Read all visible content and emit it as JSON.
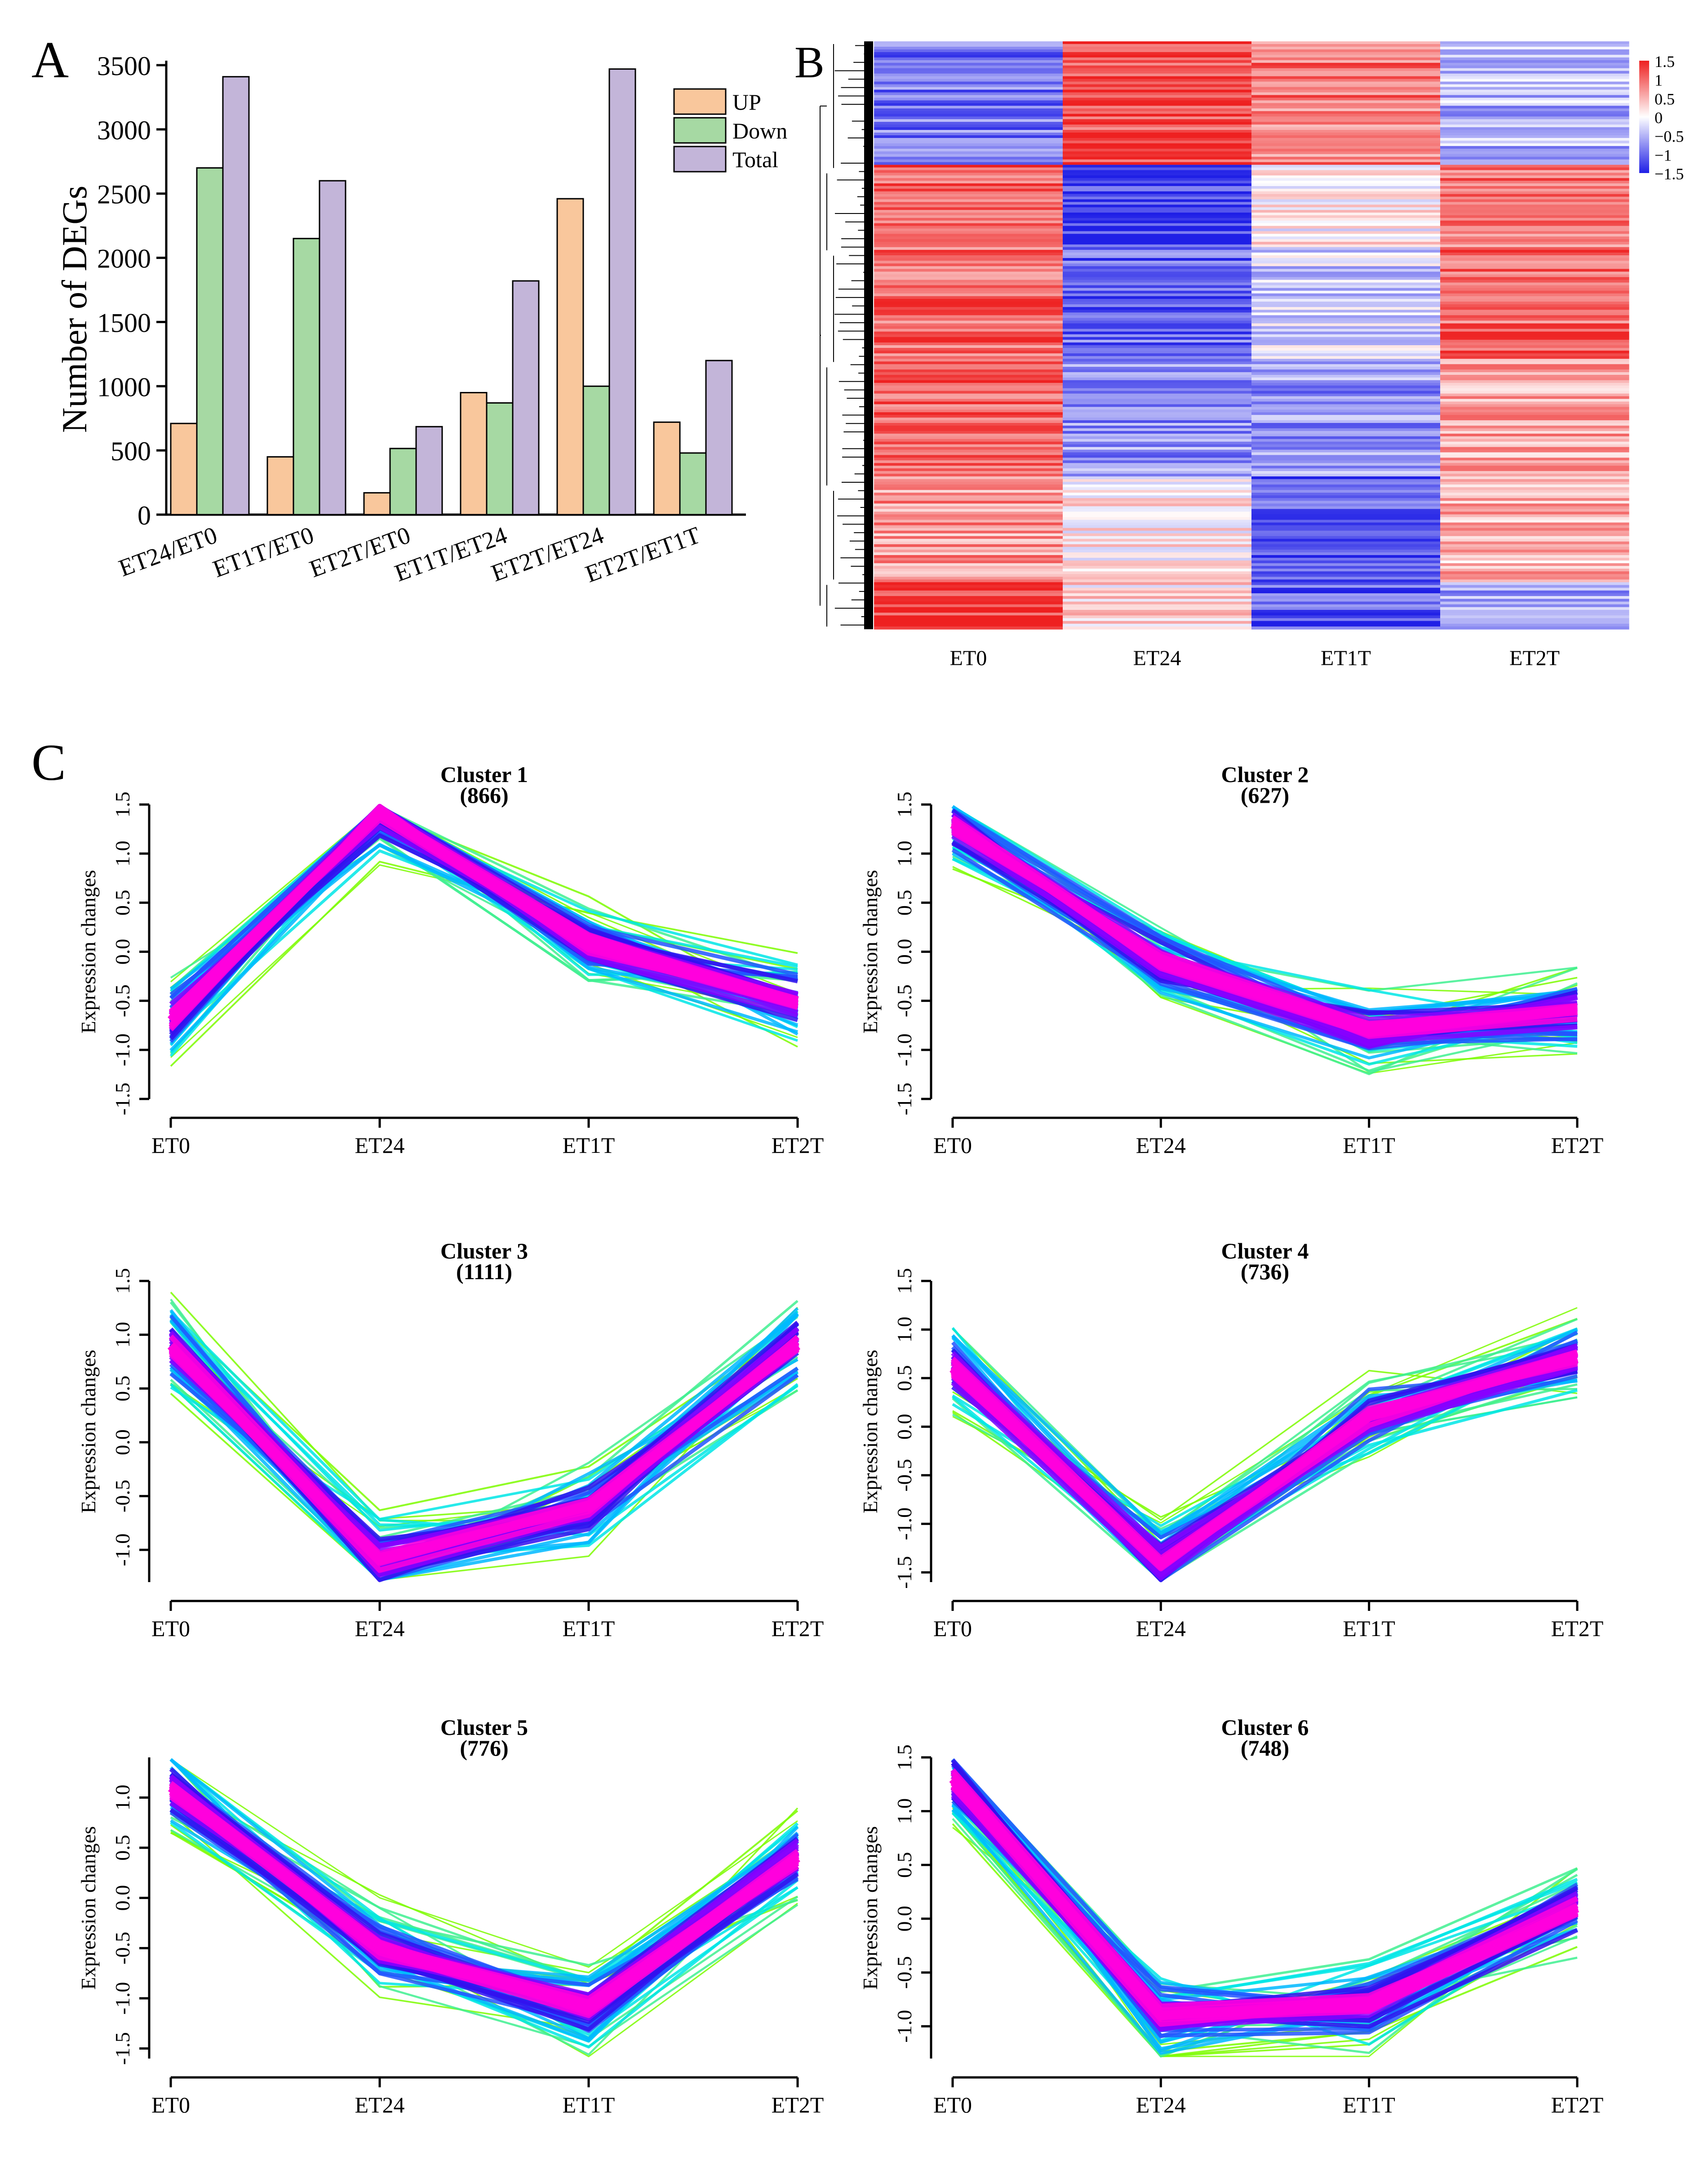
{
  "panels": {
    "a_letter": "A",
    "b_letter": "B",
    "c_letter": "C"
  },
  "chart_data": [
    {
      "id": "A",
      "type": "bar",
      "title": "",
      "ylabel": "Number of DEGs",
      "xlabel": "",
      "ylim": [
        0,
        3500
      ],
      "yticks": [
        0,
        500,
        1000,
        1500,
        2000,
        2500,
        3000,
        3500
      ],
      "categories": [
        "ET24/ET0",
        "ET1T/ET0",
        "ET2T/ET0",
        "ET1T/ET24",
        "ET2T/ET24",
        "ET2T/ET1T"
      ],
      "series": [
        {
          "name": "UP",
          "color": "#f9c79c",
          "values": [
            710,
            450,
            170,
            950,
            2460,
            720
          ]
        },
        {
          "name": "Down",
          "color": "#a6d9a3",
          "values": [
            2700,
            2150,
            515,
            870,
            1000,
            480
          ]
        },
        {
          "name": "Total",
          "color": "#c3b5d9",
          "values": [
            3410,
            2600,
            685,
            1820,
            3470,
            1200
          ]
        }
      ],
      "legend": "top-right"
    },
    {
      "id": "B",
      "type": "heatmap",
      "columns": [
        "ET0",
        "ET24",
        "ET1T",
        "ET2T"
      ],
      "color_scale": {
        "ticks": [
          "1.5",
          "1",
          "0.5",
          "0",
          "−0.5",
          "−1",
          "−1.5"
        ],
        "low": "#1f1fe6",
        "mid": "#ffffff",
        "high": "#ee2020"
      },
      "row_blocks": [
        {
          "frac": 0.21,
          "values": [
            -0.9,
            1.2,
            0.9,
            -0.5
          ]
        },
        {
          "frac": 0.14,
          "values": [
            1.1,
            -1.3,
            0.1,
            0.9
          ]
        },
        {
          "frac": 0.19,
          "values": [
            1.0,
            -1.0,
            -0.3,
            1.0
          ]
        },
        {
          "frac": 0.2,
          "values": [
            1.1,
            -0.7,
            -0.7,
            0.6
          ]
        },
        {
          "frac": 0.18,
          "values": [
            0.7,
            0.1,
            -1.1,
            0.5
          ]
        },
        {
          "frac": 0.08,
          "values": [
            1.3,
            0.2,
            -1.1,
            -0.7
          ]
        }
      ]
    },
    {
      "id": "C",
      "type": "line",
      "x": [
        "ET0",
        "ET24",
        "ET1T",
        "ET2T"
      ],
      "ylabel": "Expression changes",
      "clusters": [
        {
          "title": "Cluster 1",
          "count": "(866)",
          "ylim": [
            -1.5,
            1.5
          ],
          "yticks": [
            "-1.5",
            "-1.0",
            "-0.5",
            "0.0",
            "0.5",
            "1.0",
            "1.5"
          ],
          "center": [
            -0.7,
            1.4,
            0.1,
            -0.5
          ]
        },
        {
          "title": "Cluster 2",
          "count": "(627)",
          "ylim": [
            -1.5,
            1.5
          ],
          "yticks": [
            "-1.5",
            "-1.0",
            "-0.5",
            "0.0",
            "0.5",
            "1.0",
            "1.5"
          ],
          "center": [
            1.3,
            -0.1,
            -0.8,
            -0.6
          ]
        },
        {
          "title": "Cluster 3",
          "count": "(1111)",
          "ylim": [
            -1.3,
            1.5
          ],
          "yticks": [
            "-1.0",
            "-0.5",
            "0.0",
            "0.5",
            "1.0",
            "1.5"
          ],
          "center": [
            0.9,
            -1.1,
            -0.6,
            0.9
          ]
        },
        {
          "title": "Cluster 4",
          "count": "(736)",
          "ylim": [
            -1.6,
            1.5
          ],
          "yticks": [
            "-1.5",
            "-1.0",
            "-0.5",
            "0.0",
            "0.5",
            "1.0",
            "1.5"
          ],
          "center": [
            0.6,
            -1.4,
            0.1,
            0.7
          ]
        },
        {
          "title": "Cluster 5",
          "count": "(776)",
          "ylim": [
            -1.6,
            1.4
          ],
          "yticks": [
            "-1.5",
            "-1.0",
            "-0.5",
            "0.0",
            "0.5",
            "1.0"
          ],
          "center": [
            1.1,
            -0.5,
            -1.1,
            0.4
          ]
        },
        {
          "title": "Cluster 6",
          "count": "(748)",
          "ylim": [
            -1.3,
            1.5
          ],
          "yticks": [
            "-1.0",
            "-0.5",
            "0.0",
            "0.5",
            "1.0",
            "1.5"
          ],
          "center": [
            1.3,
            -0.9,
            -0.8,
            0.1
          ]
        }
      ]
    }
  ]
}
